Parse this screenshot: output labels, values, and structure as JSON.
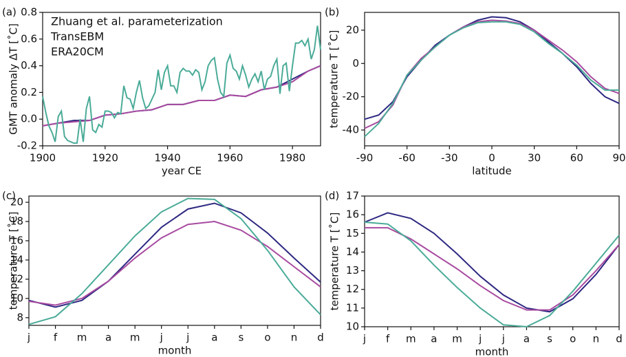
{
  "chart_data": [
    {
      "type": "line",
      "label": "(a)",
      "xlabel": "year CE",
      "ylabel": "GMT anomaly ΔT [˚C]",
      "legend": "upper left",
      "xlim": [
        1900,
        1989
      ],
      "xticks": [
        1900,
        1920,
        1940,
        1960,
        1980
      ],
      "ylim": [
        -0.2,
        0.8
      ],
      "yticks": [
        -0.2,
        {
          "value": 0,
          "label": "0.0"
        },
        0.2,
        0.4,
        0.6,
        0.8
      ],
      "series": [
        {
          "name": "Zhuang et al. parameterization",
          "color": "#2e2882",
          "x": [
            1900,
            1905,
            1910,
            1915,
            1920,
            1925,
            1930,
            1935,
            1940,
            1945,
            1950,
            1955,
            1960,
            1965,
            1970,
            1975,
            1980,
            1985,
            1989
          ],
          "values": [
            -0.05,
            -0.03,
            -0.01,
            -0.01,
            0.03,
            0.04,
            0.06,
            0.07,
            0.11,
            0.11,
            0.14,
            0.14,
            0.18,
            0.17,
            0.22,
            0.24,
            0.3,
            0.36,
            0.4
          ]
        },
        {
          "name": "TransEBM",
          "color": "#a84aa0",
          "x": [
            1900,
            1905,
            1910,
            1915,
            1920,
            1925,
            1930,
            1935,
            1940,
            1945,
            1950,
            1955,
            1960,
            1965,
            1970,
            1975,
            1980,
            1985,
            1989
          ],
          "values": [
            -0.05,
            -0.03,
            -0.02,
            -0.01,
            0.03,
            0.04,
            0.06,
            0.07,
            0.11,
            0.11,
            0.14,
            0.14,
            0.18,
            0.17,
            0.22,
            0.24,
            0.28,
            0.36,
            0.4
          ]
        },
        {
          "name": "ERA20CM",
          "color": "#4aab98",
          "x": [
            1900,
            1901,
            1902,
            1903,
            1904,
            1905,
            1906,
            1907,
            1908,
            1909,
            1910,
            1911,
            1912,
            1913,
            1914,
            1915,
            1916,
            1917,
            1918,
            1919,
            1920,
            1921,
            1922,
            1923,
            1924,
            1925,
            1926,
            1927,
            1928,
            1929,
            1930,
            1931,
            1932,
            1933,
            1934,
            1935,
            1936,
            1937,
            1938,
            1939,
            1940,
            1941,
            1942,
            1943,
            1944,
            1945,
            1946,
            1947,
            1948,
            1949,
            1950,
            1951,
            1952,
            1953,
            1954,
            1955,
            1956,
            1957,
            1958,
            1959,
            1960,
            1961,
            1962,
            1963,
            1964,
            1965,
            1966,
            1967,
            1968,
            1969,
            1970,
            1971,
            1972,
            1973,
            1974,
            1975,
            1976,
            1977,
            1978,
            1979,
            1980,
            1981,
            1982,
            1983,
            1984,
            1985,
            1986,
            1987,
            1988,
            1989
          ],
          "values": [
            0.17,
            0.05,
            -0.05,
            -0.1,
            -0.17,
            0.02,
            0.06,
            -0.13,
            -0.16,
            -0.17,
            -0.18,
            -0.18,
            0.0,
            -0.17,
            0.08,
            0.17,
            -0.08,
            -0.1,
            -0.04,
            -0.06,
            0.06,
            0.06,
            0.05,
            0.01,
            0.05,
            0.04,
            0.25,
            0.16,
            0.15,
            0.08,
            0.2,
            0.29,
            0.16,
            0.08,
            0.1,
            0.15,
            0.2,
            0.37,
            0.22,
            0.35,
            0.4,
            0.25,
            0.25,
            0.2,
            0.35,
            0.38,
            0.36,
            0.36,
            0.33,
            0.37,
            0.35,
            0.22,
            0.28,
            0.4,
            0.44,
            0.46,
            0.3,
            0.2,
            0.17,
            0.42,
            0.48,
            0.38,
            0.36,
            0.3,
            0.4,
            0.33,
            0.24,
            0.3,
            0.34,
            0.28,
            0.36,
            0.22,
            0.3,
            0.32,
            0.4,
            0.45,
            0.19,
            0.4,
            0.42,
            0.21,
            0.4,
            0.57,
            0.57,
            0.59,
            0.55,
            0.6,
            0.45,
            0.52,
            0.7,
            0.52
          ]
        }
      ]
    },
    {
      "type": "line",
      "label": "(b)",
      "xlabel": "latitude",
      "ylabel": "temperature T [˚C]",
      "x": [
        -90,
        -80,
        -70,
        -60,
        -50,
        -40,
        -30,
        -20,
        -10,
        0,
        10,
        20,
        30,
        40,
        50,
        60,
        70,
        80,
        90
      ],
      "xlim": [
        -90,
        90
      ],
      "xticks": [
        -90,
        -60,
        -30,
        0,
        30,
        60,
        90
      ],
      "ylim": [
        -49.5,
        30.7
      ],
      "yticks": [
        -40,
        -20,
        0,
        20
      ],
      "series": [
        {
          "name": "Zhuang et al. parameterization",
          "color": "#2e2882",
          "values": [
            -33.5,
            -31,
            -23,
            -8,
            2,
            11,
            17,
            22,
            26,
            28,
            27.5,
            25,
            20,
            13,
            6,
            -2,
            -12,
            -20,
            -24
          ]
        },
        {
          "name": "TransEBM",
          "color": "#a84aa0",
          "values": [
            -39,
            -35,
            -25,
            -7,
            3,
            10,
            17,
            22,
            25,
            26,
            25.5,
            24,
            20,
            14,
            8,
            1,
            -8,
            -15,
            -18
          ]
        },
        {
          "name": "ERA20CM",
          "color": "#4aab98",
          "values": [
            -44,
            -36,
            -24,
            -7,
            2,
            10,
            17,
            21.5,
            24.5,
            25,
            25,
            23.5,
            19,
            12,
            6,
            -1,
            -10,
            -16,
            -16
          ]
        }
      ]
    },
    {
      "type": "line",
      "label": "(c)",
      "xlabel": "month",
      "ylabel": "temperature T [˚C]",
      "categories": [
        "j",
        "f",
        "m",
        "a",
        "m",
        "j",
        "j",
        "a",
        "s",
        "o",
        "n",
        "d"
      ],
      "ylim": [
        7.2,
        20.65
      ],
      "yticks": [
        8,
        10,
        12,
        14,
        16,
        18,
        20
      ],
      "series": [
        {
          "name": "Zhuang et al. parameterization",
          "color": "#2e2882",
          "values": [
            9.8,
            9.1,
            9.8,
            11.8,
            14.6,
            17.4,
            19.3,
            19.9,
            18.9,
            16.8,
            14.2,
            11.7
          ]
        },
        {
          "name": "TransEBM",
          "color": "#a84aa0",
          "values": [
            9.7,
            9.3,
            10.0,
            11.8,
            14.2,
            16.3,
            17.7,
            18.0,
            17.1,
            15.4,
            13.3,
            11.2
          ]
        },
        {
          "name": "ERA20CM",
          "color": "#4aab98",
          "values": [
            7.3,
            8.1,
            10.5,
            13.5,
            16.5,
            19.0,
            20.4,
            20.3,
            18.3,
            15.0,
            11.2,
            8.3
          ]
        }
      ]
    },
    {
      "type": "line",
      "label": "(d)",
      "xlabel": "month",
      "ylabel": "temperature T [˚C]",
      "categories": [
        "j",
        "f",
        "m",
        "a",
        "m",
        "j",
        "j",
        "a",
        "s",
        "o",
        "n",
        "d"
      ],
      "ylim": [
        10,
        17
      ],
      "yticks": [
        10,
        11,
        12,
        13,
        14,
        15,
        16,
        17
      ],
      "series": [
        {
          "name": "Zhuang et al. parameterization",
          "color": "#2e2882",
          "values": [
            15.6,
            16.1,
            15.8,
            15.0,
            13.9,
            12.7,
            11.7,
            11.0,
            10.8,
            11.5,
            12.8,
            14.4
          ]
        },
        {
          "name": "TransEBM",
          "color": "#a84aa0",
          "values": [
            15.3,
            15.3,
            14.7,
            13.9,
            13.1,
            12.2,
            11.4,
            10.9,
            10.9,
            11.7,
            13.0,
            14.4
          ]
        },
        {
          "name": "ERA20CM",
          "color": "#4aab98",
          "values": [
            15.6,
            15.5,
            14.6,
            13.3,
            12.1,
            11.0,
            10.1,
            10.0,
            10.6,
            11.9,
            13.4,
            14.9
          ]
        }
      ]
    }
  ]
}
